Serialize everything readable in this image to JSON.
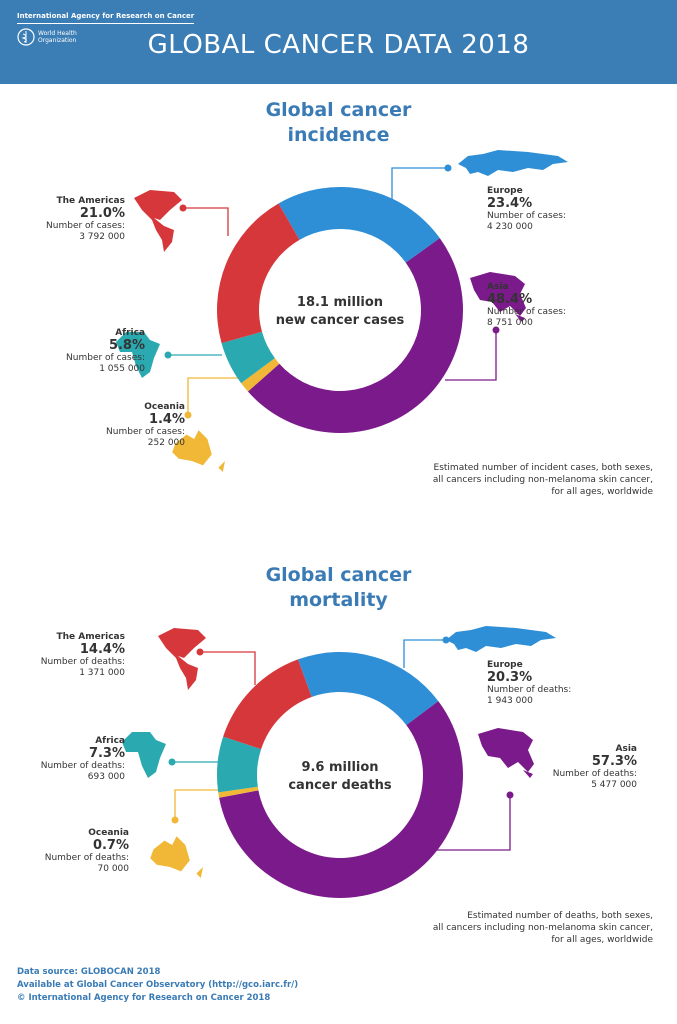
{
  "header": {
    "org": "International Agency for Research on Cancer",
    "who": "World Health Organization",
    "title": "GLOBAL CANCER DATA 2018"
  },
  "colors": {
    "Europe": "#2e8fd6",
    "Asia": "#7b1a8a",
    "Oceania": "#f0b836",
    "Africa": "#2aa9b0",
    "The Americas": "#d6373a",
    "header": "#3b7db5"
  },
  "chart_data": [
    {
      "type": "pie",
      "title": "Global cancer incidence",
      "center_line1": "18.1 million",
      "center_line2": "new cancer cases",
      "metric_label": "Number of cases:",
      "note": [
        "Estimated number of incident cases, both sexes,",
        "all cancers including non-melanoma skin cancer,",
        "for all ages, worldwide"
      ],
      "slices": [
        {
          "region": "Europe",
          "percent": "23.4%",
          "value": 23.4,
          "count": "4 230 000"
        },
        {
          "region": "Asia",
          "percent": "48.4%",
          "value": 48.4,
          "count": "8 751 000"
        },
        {
          "region": "Oceania",
          "percent": "1.4%",
          "value": 1.4,
          "count": "252 000"
        },
        {
          "region": "Africa",
          "percent": "5.8%",
          "value": 5.8,
          "count": "1 055 000"
        },
        {
          "region": "The Americas",
          "percent": "21.0%",
          "value": 21.0,
          "count": "3 792 000"
        }
      ]
    },
    {
      "type": "pie",
      "title": "Global cancer mortality",
      "center_line1": "9.6 million",
      "center_line2": "cancer deaths",
      "metric_label": "Number of deaths:",
      "note": [
        "Estimated number of deaths, both sexes,",
        "all cancers including non-melanoma skin cancer,",
        "for all ages, worldwide"
      ],
      "slices": [
        {
          "region": "Europe",
          "percent": "20.3%",
          "value": 20.3,
          "count": "1 943 000"
        },
        {
          "region": "Asia",
          "percent": "57.3%",
          "value": 57.3,
          "count": "5 477 000"
        },
        {
          "region": "Oceania",
          "percent": "0.7%",
          "value": 0.7,
          "count": "70 000"
        },
        {
          "region": "Africa",
          "percent": "7.3%",
          "value": 7.3,
          "count": "693 000"
        },
        {
          "region": "The Americas",
          "percent": "14.4%",
          "value": 14.4,
          "count": "1 371 000"
        }
      ]
    }
  ],
  "footer": {
    "source": "Data source: GLOBOCAN 2018",
    "available": "Available at Global Cancer Observatory (http://gco.iarc.fr/)",
    "copyright": "© International Agency for Research on Cancer 2018"
  }
}
